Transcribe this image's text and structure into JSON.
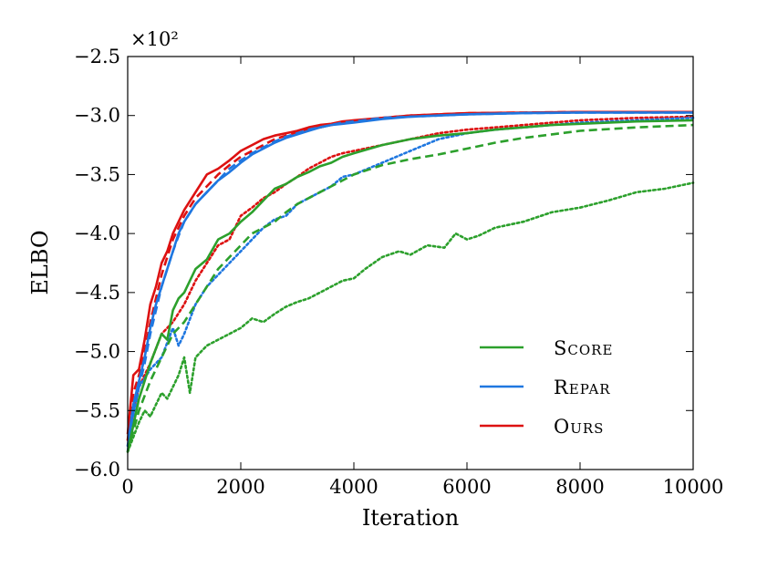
{
  "chart_data": {
    "type": "line",
    "title": "",
    "xlabel": "Iteration",
    "ylabel": "ELBO",
    "y_multiplier_label": "×10²",
    "xlim": [
      0,
      10000
    ],
    "ylim": [
      -6.0,
      -2.5
    ],
    "x_ticks": [
      0,
      2000,
      4000,
      6000,
      8000,
      10000
    ],
    "x_tick_labels": [
      "0",
      "2000",
      "4000",
      "6000",
      "8000",
      "10000"
    ],
    "y_ticks": [
      -6.0,
      -5.5,
      -5.0,
      -4.5,
      -4.0,
      -3.5,
      -3.0,
      -2.5
    ],
    "y_tick_labels": [
      "−6.0",
      "−5.5",
      "−5.0",
      "−4.5",
      "−4.0",
      "−3.5",
      "−3.0",
      "−2.5"
    ],
    "grid": false,
    "legend": {
      "placement": "bottom-right",
      "entries": [
        {
          "label": "Score",
          "color": "#2ca02c"
        },
        {
          "label": "Repar",
          "color": "#1f77e0"
        },
        {
          "label": "Ours",
          "color": "#dd1111"
        }
      ]
    },
    "series": [
      {
        "name": "Ours (solid)",
        "method": "Ours",
        "style": "solid",
        "color": "#dd1111",
        "x": [
          0,
          100,
          200,
          300,
          400,
          500,
          600,
          700,
          800,
          900,
          1000,
          1200,
          1400,
          1600,
          1800,
          2000,
          2200,
          2400,
          2600,
          2800,
          3000,
          3200,
          3400,
          3600,
          3800,
          4000,
          4500,
          5000,
          5500,
          6000,
          7000,
          8000,
          9000,
          10000
        ],
        "y": [
          -5.7,
          -5.2,
          -5.15,
          -4.9,
          -4.6,
          -4.45,
          -4.25,
          -4.15,
          -4.0,
          -3.9,
          -3.8,
          -3.65,
          -3.5,
          -3.45,
          -3.38,
          -3.3,
          -3.25,
          -3.2,
          -3.17,
          -3.15,
          -3.13,
          -3.1,
          -3.08,
          -3.07,
          -3.05,
          -3.04,
          -3.02,
          -3.0,
          -2.99,
          -2.98,
          -2.975,
          -2.97,
          -2.97,
          -2.97
        ]
      },
      {
        "name": "Ours (dashed)",
        "method": "Ours",
        "style": "dashed",
        "color": "#dd1111",
        "x": [
          0,
          100,
          200,
          300,
          400,
          500,
          600,
          700,
          800,
          900,
          1000,
          1200,
          1400,
          1600,
          1800,
          2000,
          2200,
          2400,
          2600,
          2800,
          3000,
          3200,
          3400,
          3600,
          3800,
          4000,
          4500,
          5000,
          5500,
          6000,
          7000,
          8000,
          9000,
          10000
        ],
        "y": [
          -5.75,
          -5.35,
          -5.2,
          -5.0,
          -4.75,
          -4.55,
          -4.35,
          -4.2,
          -4.05,
          -3.95,
          -3.85,
          -3.7,
          -3.6,
          -3.5,
          -3.42,
          -3.35,
          -3.3,
          -3.25,
          -3.2,
          -3.17,
          -3.14,
          -3.12,
          -3.1,
          -3.08,
          -3.06,
          -3.05,
          -3.02,
          -3.0,
          -2.99,
          -2.98,
          -2.975,
          -2.97,
          -2.97,
          -2.97
        ]
      },
      {
        "name": "Ours (dotted)",
        "method": "Ours",
        "style": "dotted",
        "color": "#dd1111",
        "x": [
          0,
          200,
          400,
          600,
          800,
          1000,
          1200,
          1400,
          1600,
          1800,
          2000,
          2200,
          2400,
          2600,
          2800,
          3000,
          3200,
          3400,
          3600,
          3800,
          4000,
          4500,
          5000,
          5500,
          6000,
          6500,
          7000,
          7500,
          8000,
          9000,
          10000
        ],
        "y": [
          -5.75,
          -5.3,
          -5.1,
          -4.85,
          -4.75,
          -4.6,
          -4.4,
          -4.25,
          -4.1,
          -4.05,
          -3.85,
          -3.78,
          -3.7,
          -3.65,
          -3.58,
          -3.52,
          -3.45,
          -3.4,
          -3.35,
          -3.32,
          -3.3,
          -3.25,
          -3.2,
          -3.15,
          -3.12,
          -3.1,
          -3.08,
          -3.06,
          -3.04,
          -3.02,
          -3.01
        ]
      },
      {
        "name": "Repar (solid)",
        "method": "Repar",
        "style": "solid",
        "color": "#1f77e0",
        "x": [
          0,
          100,
          200,
          300,
          400,
          500,
          600,
          700,
          800,
          900,
          1000,
          1200,
          1400,
          1600,
          1800,
          2000,
          2200,
          2400,
          2600,
          2800,
          3000,
          3200,
          3400,
          3600,
          3800,
          4000,
          4500,
          5000,
          5500,
          6000,
          7000,
          8000,
          9000,
          10000
        ],
        "y": [
          -5.8,
          -5.45,
          -5.25,
          -5.05,
          -4.8,
          -4.6,
          -4.45,
          -4.3,
          -4.15,
          -4.0,
          -3.9,
          -3.75,
          -3.65,
          -3.55,
          -3.48,
          -3.4,
          -3.33,
          -3.28,
          -3.23,
          -3.19,
          -3.16,
          -3.13,
          -3.1,
          -3.08,
          -3.07,
          -3.06,
          -3.03,
          -3.01,
          -3.0,
          -2.99,
          -2.98,
          -2.975,
          -2.975,
          -2.975
        ]
      },
      {
        "name": "Repar (dashed)",
        "method": "Repar",
        "style": "dashed",
        "color": "#1f77e0",
        "x": [
          0,
          100,
          200,
          300,
          400,
          500,
          600,
          700,
          800,
          900,
          1000,
          1200,
          1400,
          1600,
          1800,
          2000,
          2200,
          2400,
          2600,
          2800,
          3000,
          3200,
          3400,
          3600,
          3800,
          4000,
          4500,
          5000,
          5500,
          6000,
          7000,
          8000,
          9000,
          10000
        ],
        "y": [
          -5.85,
          -5.5,
          -5.3,
          -5.1,
          -4.85,
          -4.65,
          -4.45,
          -4.3,
          -4.15,
          -4.02,
          -3.9,
          -3.75,
          -3.65,
          -3.55,
          -3.45,
          -3.38,
          -3.32,
          -3.27,
          -3.22,
          -3.18,
          -3.15,
          -3.12,
          -3.1,
          -3.08,
          -3.06,
          -3.05,
          -3.02,
          -3.01,
          -3.0,
          -2.99,
          -2.98,
          -2.975,
          -2.975,
          -2.975
        ]
      },
      {
        "name": "Repar (dotted)",
        "method": "Repar",
        "style": "dotted",
        "color": "#1f77e0",
        "x": [
          0,
          200,
          400,
          600,
          800,
          900,
          1000,
          1200,
          1400,
          1600,
          1800,
          2000,
          2200,
          2400,
          2600,
          2800,
          3000,
          3200,
          3400,
          3600,
          3800,
          4000,
          4500,
          5000,
          5500,
          6000,
          6500,
          7000,
          7500,
          8000,
          9000,
          10000
        ],
        "y": [
          -5.8,
          -5.3,
          -5.15,
          -5.05,
          -4.8,
          -4.95,
          -4.85,
          -4.6,
          -4.45,
          -4.35,
          -4.25,
          -4.15,
          -4.05,
          -3.95,
          -3.88,
          -3.85,
          -3.75,
          -3.7,
          -3.65,
          -3.6,
          -3.52,
          -3.5,
          -3.4,
          -3.3,
          -3.2,
          -3.15,
          -3.12,
          -3.1,
          -3.08,
          -3.06,
          -3.04,
          -3.02
        ]
      },
      {
        "name": "Score (solid)",
        "method": "Score",
        "style": "solid",
        "color": "#2ca02c",
        "x": [
          0,
          200,
          400,
          600,
          700,
          800,
          900,
          1000,
          1200,
          1400,
          1600,
          1800,
          2000,
          2200,
          2400,
          2600,
          2800,
          3000,
          3200,
          3400,
          3600,
          3800,
          4000,
          4500,
          5000,
          5500,
          6000,
          6500,
          7000,
          7500,
          8000,
          9000,
          10000
        ],
        "y": [
          -5.85,
          -5.4,
          -5.1,
          -4.85,
          -4.9,
          -4.65,
          -4.55,
          -4.5,
          -4.3,
          -4.22,
          -4.05,
          -4.0,
          -3.9,
          -3.82,
          -3.72,
          -3.62,
          -3.58,
          -3.52,
          -3.48,
          -3.43,
          -3.4,
          -3.35,
          -3.32,
          -3.25,
          -3.2,
          -3.17,
          -3.15,
          -3.12,
          -3.1,
          -3.08,
          -3.07,
          -3.05,
          -3.04
        ]
      },
      {
        "name": "Score (dashed)",
        "method": "Score",
        "style": "dashed",
        "color": "#2ca02c",
        "x": [
          0,
          200,
          400,
          600,
          800,
          1000,
          1200,
          1400,
          1600,
          1800,
          2000,
          2200,
          2400,
          2600,
          2800,
          3000,
          3200,
          3400,
          3600,
          3800,
          4000,
          4500,
          5000,
          5500,
          6000,
          6500,
          7000,
          7500,
          8000,
          9000,
          10000
        ],
        "y": [
          -5.85,
          -5.5,
          -5.25,
          -5.05,
          -4.85,
          -4.75,
          -4.6,
          -4.45,
          -4.3,
          -4.2,
          -4.1,
          -4.0,
          -3.95,
          -3.9,
          -3.82,
          -3.75,
          -3.7,
          -3.65,
          -3.6,
          -3.55,
          -3.5,
          -3.42,
          -3.37,
          -3.33,
          -3.28,
          -3.23,
          -3.19,
          -3.16,
          -3.13,
          -3.1,
          -3.08
        ]
      },
      {
        "name": "Score (dotted)",
        "method": "Score",
        "style": "dotted",
        "color": "#2ca02c",
        "x": [
          0,
          200,
          300,
          400,
          500,
          600,
          700,
          800,
          900,
          1000,
          1100,
          1200,
          1400,
          1600,
          1800,
          2000,
          2200,
          2400,
          2600,
          2800,
          3000,
          3200,
          3400,
          3600,
          3800,
          4000,
          4200,
          4500,
          4800,
          5000,
          5300,
          5600,
          5800,
          6000,
          6200,
          6500,
          7000,
          7500,
          8000,
          8500,
          9000,
          9500,
          10000
        ],
        "y": [
          -5.85,
          -5.6,
          -5.5,
          -5.55,
          -5.45,
          -5.35,
          -5.4,
          -5.3,
          -5.2,
          -5.05,
          -5.35,
          -5.05,
          -4.95,
          -4.9,
          -4.85,
          -4.8,
          -4.72,
          -4.75,
          -4.68,
          -4.62,
          -4.58,
          -4.55,
          -4.5,
          -4.45,
          -4.4,
          -4.38,
          -4.3,
          -4.2,
          -4.15,
          -4.18,
          -4.1,
          -4.12,
          -4.0,
          -4.05,
          -4.02,
          -3.95,
          -3.9,
          -3.82,
          -3.78,
          -3.72,
          -3.65,
          -3.62,
          -3.57
        ]
      }
    ]
  }
}
